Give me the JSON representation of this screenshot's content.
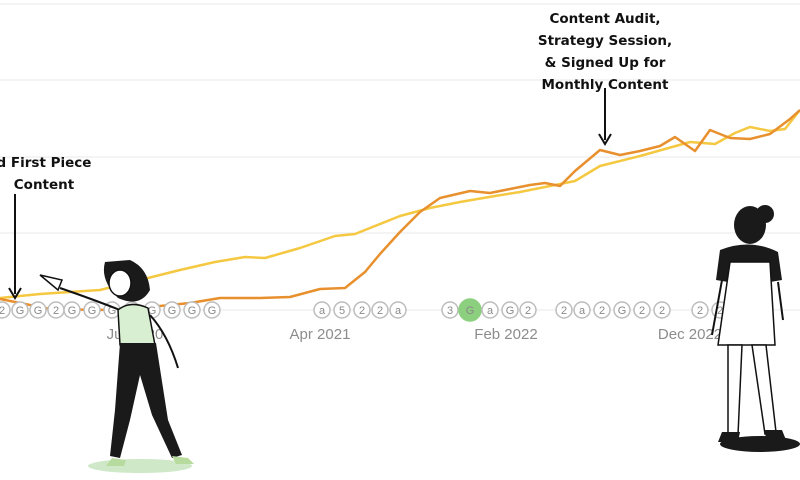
{
  "chart_data": {
    "type": "line",
    "title": "",
    "xlabel": "",
    "ylabel": "",
    "x_ticks": [
      "Jul 2020",
      "Apr 2021",
      "Feb 2022",
      "Dec 2022"
    ],
    "grid": true,
    "series": [
      {
        "color": "#F5C842",
        "values": [
          [
            0,
            298
          ],
          [
            40,
            294
          ],
          [
            100,
            290
          ],
          [
            140,
            280
          ],
          [
            180,
            270
          ],
          [
            215,
            262
          ],
          [
            245,
            257
          ],
          [
            265,
            258
          ],
          [
            300,
            248
          ],
          [
            335,
            236
          ],
          [
            355,
            234
          ],
          [
            370,
            228
          ],
          [
            400,
            216
          ],
          [
            430,
            208
          ],
          [
            460,
            202
          ],
          [
            495,
            196
          ],
          [
            520,
            192
          ],
          [
            550,
            186
          ],
          [
            575,
            181
          ],
          [
            600,
            166
          ],
          [
            640,
            156
          ],
          [
            665,
            149
          ],
          [
            690,
            142
          ],
          [
            715,
            144
          ],
          [
            735,
            133
          ],
          [
            750,
            127
          ],
          [
            770,
            131
          ],
          [
            785,
            129
          ],
          [
            800,
            110
          ]
        ]
      },
      {
        "color": "#E8902E",
        "values": [
          [
            0,
            299
          ],
          [
            50,
            309
          ],
          [
            100,
            310
          ],
          [
            150,
            307
          ],
          [
            190,
            303
          ],
          [
            220,
            298
          ],
          [
            260,
            298
          ],
          [
            290,
            297
          ],
          [
            320,
            289
          ],
          [
            345,
            288
          ],
          [
            365,
            272
          ],
          [
            380,
            254
          ],
          [
            400,
            232
          ],
          [
            420,
            212
          ],
          [
            440,
            198
          ],
          [
            470,
            191
          ],
          [
            490,
            193
          ],
          [
            510,
            189
          ],
          [
            530,
            185
          ],
          [
            545,
            183
          ],
          [
            560,
            186
          ],
          [
            575,
            171
          ],
          [
            600,
            150
          ],
          [
            620,
            155
          ],
          [
            640,
            151
          ],
          [
            660,
            146
          ],
          [
            675,
            137
          ],
          [
            695,
            151
          ],
          [
            710,
            130
          ],
          [
            730,
            138
          ],
          [
            750,
            139
          ],
          [
            770,
            134
          ],
          [
            790,
            119
          ],
          [
            800,
            110
          ]
        ]
      }
    ],
    "markers": [
      "2",
      "G",
      "G",
      "2",
      "G",
      "G",
      "G",
      "G",
      "G",
      "G",
      "G",
      "G",
      "a",
      "5",
      "2",
      "2",
      "a",
      "3",
      "G",
      "a",
      "G",
      "2",
      "2",
      "a",
      "2",
      "G",
      "2",
      "2",
      "2",
      "2"
    ]
  },
  "annotations": {
    "left": "d First Piece\nContent",
    "right": "Content Audit,\nStrategy Session,\n& Signed Up for\nMonthly Content"
  }
}
